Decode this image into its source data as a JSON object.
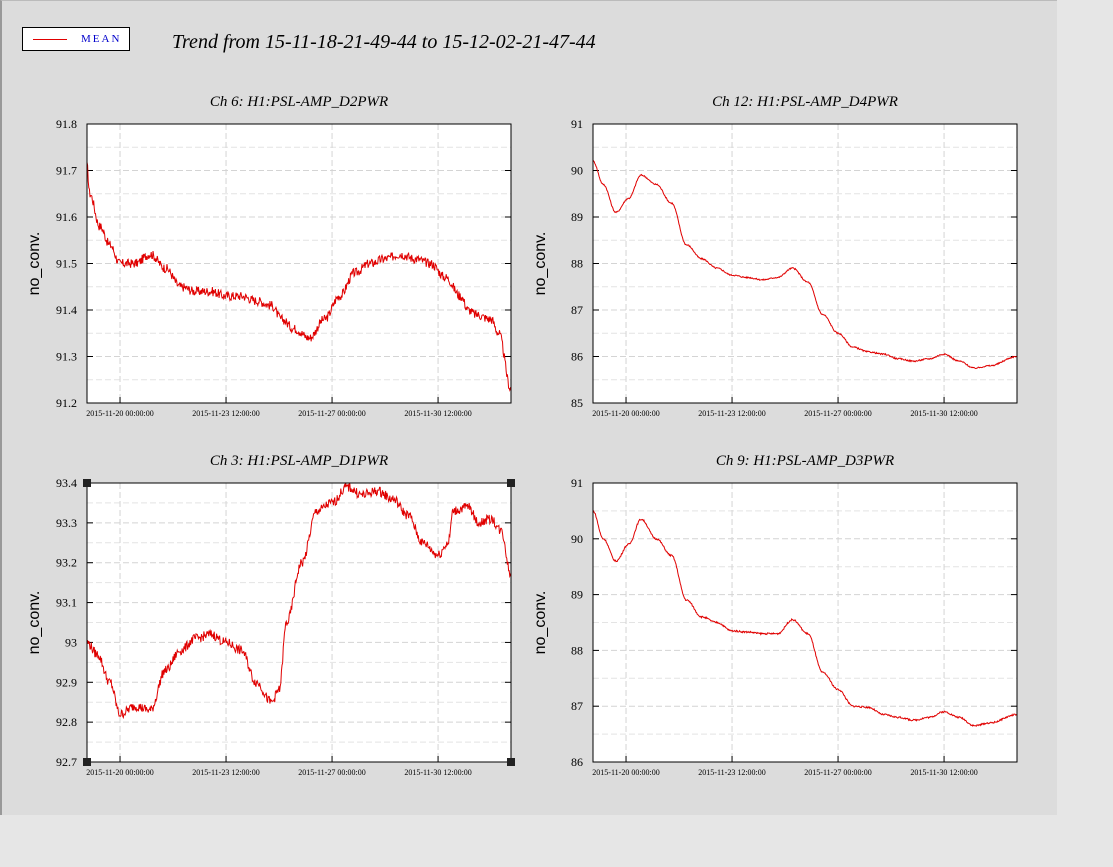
{
  "header": {
    "title": "Trend from 15-11-18-21-49-44 to 15-12-02-21-47-44",
    "legend_label": "MEAN",
    "series_color": "#e00000"
  },
  "chart_data": [
    {
      "type": "line",
      "title": "Ch 6: H1:PSL-AMP_D2PWR",
      "ylabel": "no_conv.",
      "ylim": [
        91.2,
        91.8
      ],
      "yticks": [
        "91.2",
        "91.3",
        "91.4",
        "91.5",
        "91.6",
        "91.7",
        "91.8"
      ],
      "xlim": [
        "2015-11-18 21:49:44",
        "2015-12-02 21:47:44"
      ],
      "xticks": [
        "2015-11-20 00:00:00",
        "2015-11-23 12:00:00",
        "2015-11-27 00:00:00",
        "2015-11-30 12:00:00"
      ],
      "series": [
        {
          "x": [
            "2015-11-18 21:49",
            "2015-11-19 00:00",
            "2015-11-19 08:00",
            "2015-11-19 16:00",
            "2015-11-20 00:00",
            "2015-11-20 12:00",
            "2015-11-21 00:00",
            "2015-11-21 12:00",
            "2015-11-22 00:00",
            "2015-11-22 12:00",
            "2015-11-23 00:00",
            "2015-11-23 12:00",
            "2015-11-24 00:00",
            "2015-11-24 12:00",
            "2015-11-25 00:00",
            "2015-11-25 08:00",
            "2015-11-25 18:00",
            "2015-11-26 06:00",
            "2015-11-26 18:00",
            "2015-11-27 06:00",
            "2015-11-27 18:00",
            "2015-11-28 06:00",
            "2015-11-28 18:00",
            "2015-11-29 06:00",
            "2015-11-29 18:00",
            "2015-11-30 06:00",
            "2015-11-30 18:00",
            "2015-12-01 06:00",
            "2015-12-01 12:00",
            "2015-12-01 18:00",
            "2015-12-02 06:00",
            "2015-12-02 12:00",
            "2015-12-02 21:47"
          ],
          "y": [
            91.71,
            91.65,
            91.58,
            91.54,
            91.5,
            91.5,
            91.52,
            91.49,
            91.45,
            91.44,
            91.44,
            91.43,
            91.43,
            91.42,
            91.41,
            91.38,
            91.36,
            91.34,
            91.38,
            91.43,
            91.48,
            91.5,
            91.51,
            91.52,
            91.51,
            91.5,
            91.47,
            91.43,
            91.4,
            91.39,
            91.38,
            91.35,
            91.23
          ],
          "noise": 0.01
        }
      ]
    },
    {
      "type": "line",
      "title": "Ch 12: H1:PSL-AMP_D4PWR",
      "ylabel": "no_conv.",
      "ylim": [
        85,
        91
      ],
      "yticks": [
        "85",
        "86",
        "87",
        "88",
        "89",
        "90",
        "91"
      ],
      "xlim": [
        "2015-11-18 21:49:44",
        "2015-12-02 21:47:44"
      ],
      "xticks": [
        "2015-11-20 00:00:00",
        "2015-11-23 12:00:00",
        "2015-11-27 00:00:00",
        "2015-11-30 12:00:00"
      ],
      "series": [
        {
          "x": [
            "2015-11-18 21:49",
            "2015-11-19 06:00",
            "2015-11-19 16:00",
            "2015-11-20 02:00",
            "2015-11-20 12:00",
            "2015-11-21 00:00",
            "2015-11-21 12:00",
            "2015-11-22 00:00",
            "2015-11-22 12:00",
            "2015-11-23 00:00",
            "2015-11-23 12:00",
            "2015-11-24 00:00",
            "2015-11-24 12:00",
            "2015-11-25 00:00",
            "2015-11-25 12:00",
            "2015-11-26 00:00",
            "2015-11-26 12:00",
            "2015-11-27 00:00",
            "2015-11-27 12:00",
            "2015-11-28 00:00",
            "2015-11-28 12:00",
            "2015-11-29 00:00",
            "2015-11-29 12:00",
            "2015-11-30 00:00",
            "2015-11-30 12:00",
            "2015-12-01 00:00",
            "2015-12-01 12:00",
            "2015-12-02 00:00",
            "2015-12-02 21:47"
          ],
          "y": [
            90.2,
            89.7,
            89.1,
            89.4,
            89.9,
            89.7,
            89.3,
            88.4,
            88.1,
            87.9,
            87.75,
            87.7,
            87.65,
            87.7,
            87.9,
            87.6,
            86.9,
            86.5,
            86.2,
            86.1,
            86.05,
            85.95,
            85.9,
            85.95,
            86.05,
            85.9,
            85.75,
            85.8,
            86.0
          ],
          "noise": 0.015
        }
      ]
    },
    {
      "type": "line",
      "title": "Ch 3: H1:PSL-AMP_D1PWR",
      "ylabel": "no_conv.",
      "ylim": [
        92.7,
        93.4
      ],
      "yticks": [
        "92.7",
        "92.8",
        "92.9",
        "93",
        "93.1",
        "93.2",
        "93.3",
        "93.4"
      ],
      "xlim": [
        "2015-11-18 21:49:44",
        "2015-12-02 21:47:44"
      ],
      "xticks": [
        "2015-11-20 00:00:00",
        "2015-11-23 12:00:00",
        "2015-11-27 00:00:00",
        "2015-11-30 12:00:00"
      ],
      "series": [
        {
          "x": [
            "2015-11-18 21:49",
            "2015-11-19 06:00",
            "2015-11-19 16:00",
            "2015-11-20 00:00",
            "2015-11-20 12:00",
            "2015-11-21 00:00",
            "2015-11-21 12:00",
            "2015-11-22 00:00",
            "2015-11-22 12:00",
            "2015-11-23 00:00",
            "2015-11-23 12:00",
            "2015-11-24 00:00",
            "2015-11-24 12:00",
            "2015-11-25 00:00",
            "2015-11-25 06:00",
            "2015-11-25 12:00",
            "2015-11-26 00:00",
            "2015-11-26 12:00",
            "2015-11-27 00:00",
            "2015-11-27 12:00",
            "2015-11-28 00:00",
            "2015-11-28 12:00",
            "2015-11-29 00:00",
            "2015-11-29 12:00",
            "2015-11-30 00:00",
            "2015-11-30 12:00",
            "2015-11-30 20:00",
            "2015-12-01 00:00",
            "2015-12-01 12:00",
            "2015-12-01 20:00",
            "2015-12-02 06:00",
            "2015-12-02 14:00",
            "2015-12-02 21:47"
          ],
          "y": [
            93.0,
            92.97,
            92.9,
            92.82,
            92.84,
            92.83,
            92.93,
            92.98,
            93.01,
            93.02,
            93.0,
            92.98,
            92.9,
            92.85,
            92.88,
            93.05,
            93.2,
            93.33,
            93.35,
            93.39,
            93.37,
            93.38,
            93.36,
            93.32,
            93.25,
            93.22,
            93.25,
            93.33,
            93.34,
            93.3,
            93.31,
            93.28,
            93.17
          ],
          "noise": 0.012
        }
      ]
    },
    {
      "type": "line",
      "title": "Ch 9: H1:PSL-AMP_D3PWR",
      "ylabel": "no_conv.",
      "ylim": [
        86,
        91
      ],
      "yticks": [
        "86",
        "87",
        "88",
        "89",
        "90",
        "91"
      ],
      "xlim": [
        "2015-11-18 21:49:44",
        "2015-12-02 21:47:44"
      ],
      "xticks": [
        "2015-11-20 00:00:00",
        "2015-11-23 12:00:00",
        "2015-11-27 00:00:00",
        "2015-11-30 12:00:00"
      ],
      "series": [
        {
          "x": [
            "2015-11-18 21:49",
            "2015-11-19 06:00",
            "2015-11-19 16:00",
            "2015-11-20 02:00",
            "2015-11-20 12:00",
            "2015-11-21 00:00",
            "2015-11-21 12:00",
            "2015-11-22 00:00",
            "2015-11-22 12:00",
            "2015-11-23 00:00",
            "2015-11-23 12:00",
            "2015-11-24 00:00",
            "2015-11-24 12:00",
            "2015-11-25 00:00",
            "2015-11-25 12:00",
            "2015-11-26 00:00",
            "2015-11-26 12:00",
            "2015-11-27 00:00",
            "2015-11-27 12:00",
            "2015-11-28 00:00",
            "2015-11-28 12:00",
            "2015-11-29 00:00",
            "2015-11-29 12:00",
            "2015-11-30 00:00",
            "2015-11-30 12:00",
            "2015-12-01 00:00",
            "2015-12-01 12:00",
            "2015-12-02 00:00",
            "2015-12-02 21:47"
          ],
          "y": [
            90.5,
            90.0,
            89.6,
            89.9,
            90.35,
            90.0,
            89.7,
            88.9,
            88.6,
            88.5,
            88.35,
            88.33,
            88.3,
            88.3,
            88.55,
            88.3,
            87.6,
            87.3,
            87.0,
            86.98,
            86.85,
            86.8,
            86.75,
            86.8,
            86.9,
            86.8,
            86.65,
            86.7,
            86.85
          ],
          "noise": 0.015
        }
      ]
    }
  ]
}
